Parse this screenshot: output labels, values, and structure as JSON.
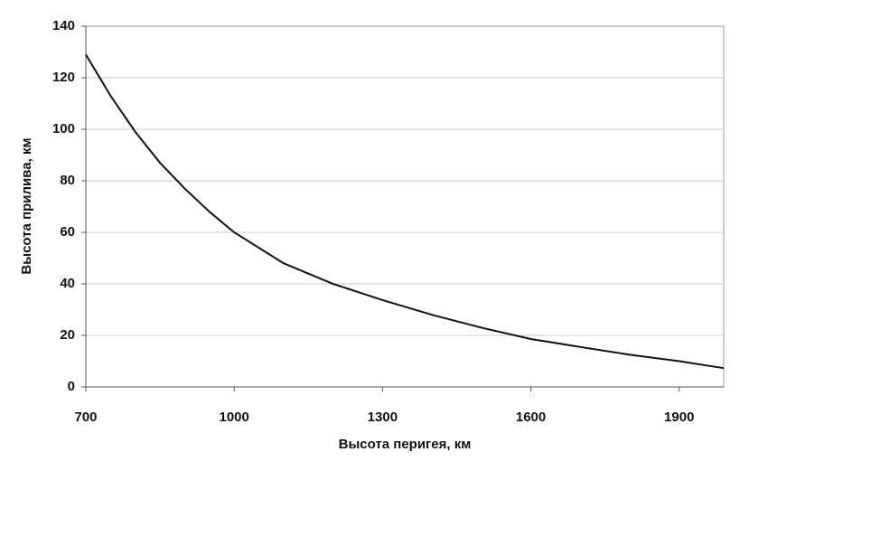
{
  "chart_data": {
    "type": "line",
    "x_label": "Высота перигея, км",
    "y_label": "Высота прилива, км",
    "x": [
      700,
      750,
      800,
      850,
      900,
      950,
      1000,
      1100,
      1200,
      1300,
      1400,
      1500,
      1600,
      1700,
      1800,
      1900,
      1990
    ],
    "values": [
      129,
      113,
      99,
      87,
      77,
      68,
      60,
      48,
      40,
      33.7,
      28,
      23,
      18.6,
      15.5,
      12.5,
      10,
      7.3
    ],
    "color": "#111111",
    "xlim": [
      700,
      1990
    ],
    "xticks": [
      700,
      1000,
      1300,
      1600,
      1900
    ],
    "ylim": [
      0,
      140
    ],
    "yticks": [
      0,
      20,
      40,
      60,
      80,
      100,
      120,
      140
    ],
    "grid": true
  }
}
